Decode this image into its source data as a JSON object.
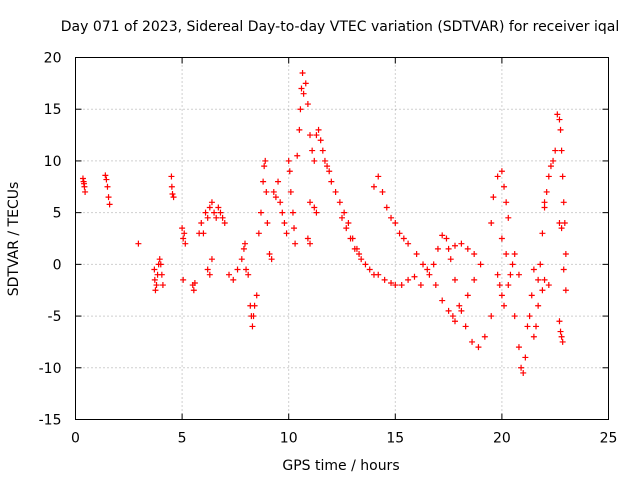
{
  "chart_data": {
    "type": "scatter",
    "title": "Day 071 of 2023, Sidereal Day-to-day VTEC variation (SDTVAR) for receiver iqal",
    "xlabel": "GPS time / hours",
    "ylabel": "SDTVAR / TECUs",
    "xlim": [
      0,
      25
    ],
    "ylim": [
      -15,
      20
    ],
    "xticks": [
      0,
      5,
      10,
      15,
      20,
      25
    ],
    "yticks": [
      -15,
      -10,
      -5,
      0,
      5,
      10,
      15,
      20
    ],
    "grid": true,
    "marker": "+",
    "marker_color": "#ff0000",
    "series": [
      {
        "name": "SDTVAR",
        "color": "#ff0000",
        "points": [
          [
            0.35,
            8.3
          ],
          [
            0.38,
            8.0
          ],
          [
            0.4,
            7.8
          ],
          [
            0.42,
            7.5
          ],
          [
            0.45,
            7.0
          ],
          [
            1.4,
            8.6
          ],
          [
            1.45,
            8.2
          ],
          [
            1.5,
            7.5
          ],
          [
            1.55,
            6.5
          ],
          [
            1.6,
            5.8
          ],
          [
            2.95,
            2.0
          ],
          [
            3.7,
            -0.5
          ],
          [
            3.72,
            -1.5
          ],
          [
            3.75,
            -2.5
          ],
          [
            3.8,
            -2.0
          ],
          [
            3.85,
            -1.0
          ],
          [
            3.9,
            0.0
          ],
          [
            3.95,
            0.5
          ],
          [
            4.0,
            0.0
          ],
          [
            4.05,
            -1.0
          ],
          [
            4.1,
            -2.0
          ],
          [
            4.5,
            8.5
          ],
          [
            4.52,
            7.5
          ],
          [
            4.55,
            6.8
          ],
          [
            4.6,
            6.5
          ],
          [
            5.0,
            3.5
          ],
          [
            5.05,
            2.5
          ],
          [
            5.1,
            3.0
          ],
          [
            5.15,
            2.0
          ],
          [
            5.05,
            -1.5
          ],
          [
            5.5,
            -2.0
          ],
          [
            5.55,
            -2.5
          ],
          [
            5.6,
            -1.8
          ],
          [
            5.8,
            3.0
          ],
          [
            5.9,
            4.0
          ],
          [
            6.0,
            3.0
          ],
          [
            6.1,
            5.0
          ],
          [
            6.2,
            4.5
          ],
          [
            6.3,
            5.5
          ],
          [
            6.4,
            6.0
          ],
          [
            6.5,
            5.0
          ],
          [
            6.6,
            4.5
          ],
          [
            6.7,
            5.5
          ],
          [
            6.8,
            5.0
          ],
          [
            6.9,
            4.5
          ],
          [
            7.0,
            4.0
          ],
          [
            6.3,
            -1.0
          ],
          [
            6.2,
            -0.5
          ],
          [
            6.4,
            0.5
          ],
          [
            7.2,
            -1.0
          ],
          [
            7.4,
            -1.5
          ],
          [
            7.6,
            -0.5
          ],
          [
            7.8,
            0.5
          ],
          [
            7.9,
            1.5
          ],
          [
            7.95,
            2.0
          ],
          [
            8.2,
            -4.0
          ],
          [
            8.25,
            -5.0
          ],
          [
            8.3,
            -6.0
          ],
          [
            8.35,
            -5.0
          ],
          [
            8.4,
            -4.0
          ],
          [
            8.5,
            -3.0
          ],
          [
            8.1,
            -1.0
          ],
          [
            8.0,
            -0.5
          ],
          [
            8.6,
            3.0
          ],
          [
            8.7,
            5.0
          ],
          [
            8.8,
            8.0
          ],
          [
            8.85,
            9.5
          ],
          [
            8.9,
            10.0
          ],
          [
            8.95,
            7.0
          ],
          [
            9.0,
            4.0
          ],
          [
            9.1,
            1.0
          ],
          [
            9.2,
            0.5
          ],
          [
            9.3,
            7.0
          ],
          [
            9.4,
            6.5
          ],
          [
            9.5,
            8.0
          ],
          [
            9.6,
            6.0
          ],
          [
            9.7,
            5.0
          ],
          [
            9.8,
            4.0
          ],
          [
            9.9,
            3.0
          ],
          [
            10.0,
            10.0
          ],
          [
            10.05,
            9.0
          ],
          [
            10.1,
            7.0
          ],
          [
            10.2,
            5.0
          ],
          [
            10.25,
            3.5
          ],
          [
            10.3,
            2.0
          ],
          [
            10.4,
            10.5
          ],
          [
            10.5,
            13.0
          ],
          [
            10.55,
            15.0
          ],
          [
            10.6,
            17.0
          ],
          [
            10.65,
            18.5
          ],
          [
            10.7,
            16.5
          ],
          [
            10.8,
            17.5
          ],
          [
            10.9,
            15.5
          ],
          [
            11.0,
            12.5
          ],
          [
            11.1,
            11.0
          ],
          [
            11.2,
            10.0
          ],
          [
            11.3,
            12.5
          ],
          [
            11.4,
            13.0
          ],
          [
            11.5,
            12.0
          ],
          [
            11.6,
            11.0
          ],
          [
            11.7,
            10.0
          ],
          [
            11.8,
            9.5
          ],
          [
            11.9,
            9.0
          ],
          [
            11.0,
            6.0
          ],
          [
            11.2,
            5.5
          ],
          [
            11.3,
            5.0
          ],
          [
            10.9,
            2.5
          ],
          [
            11.0,
            2.0
          ],
          [
            12.0,
            8.0
          ],
          [
            12.2,
            7.0
          ],
          [
            12.4,
            6.0
          ],
          [
            12.6,
            5.0
          ],
          [
            12.8,
            4.0
          ],
          [
            13.0,
            2.5
          ],
          [
            13.2,
            1.5
          ],
          [
            13.4,
            0.5
          ],
          [
            13.6,
            0.0
          ],
          [
            13.8,
            -0.5
          ],
          [
            14.0,
            -1.0
          ],
          [
            12.5,
            4.5
          ],
          [
            12.7,
            3.5
          ],
          [
            12.9,
            2.5
          ],
          [
            13.1,
            1.5
          ],
          [
            13.3,
            1.0
          ],
          [
            14.0,
            7.5
          ],
          [
            14.2,
            8.5
          ],
          [
            14.4,
            7.0
          ],
          [
            14.6,
            5.5
          ],
          [
            14.8,
            4.5
          ],
          [
            15.0,
            4.0
          ],
          [
            15.2,
            3.0
          ],
          [
            15.4,
            2.5
          ],
          [
            15.6,
            2.0
          ],
          [
            14.2,
            -1.0
          ],
          [
            14.5,
            -1.5
          ],
          [
            14.8,
            -1.8
          ],
          [
            15.0,
            -2.0
          ],
          [
            15.3,
            -2.0
          ],
          [
            15.6,
            -1.5
          ],
          [
            15.9,
            -1.2
          ],
          [
            16.2,
            -2.0
          ],
          [
            16.5,
            -0.5
          ],
          [
            16.8,
            0.0
          ],
          [
            17.0,
            1.5
          ],
          [
            17.2,
            2.8
          ],
          [
            17.4,
            2.5
          ],
          [
            17.6,
            0.5
          ],
          [
            17.8,
            -1.5
          ],
          [
            16.0,
            1.0
          ],
          [
            16.3,
            0.0
          ],
          [
            16.6,
            -1.0
          ],
          [
            16.9,
            -2.0
          ],
          [
            17.2,
            -3.5
          ],
          [
            17.5,
            -4.5
          ],
          [
            17.7,
            -5.0
          ],
          [
            17.8,
            -5.5
          ],
          [
            18.1,
            -4.5
          ],
          [
            18.4,
            -3.0
          ],
          [
            18.7,
            -1.5
          ],
          [
            19.0,
            0.0
          ],
          [
            17.5,
            1.5
          ],
          [
            17.8,
            1.8
          ],
          [
            18.1,
            2.0
          ],
          [
            18.4,
            1.5
          ],
          [
            18.7,
            1.0
          ],
          [
            18.0,
            -4.0
          ],
          [
            18.3,
            -6.0
          ],
          [
            18.6,
            -7.5
          ],
          [
            18.9,
            -8.0
          ],
          [
            19.2,
            -7.0
          ],
          [
            19.5,
            -5.0
          ],
          [
            19.5,
            4.0
          ],
          [
            19.6,
            6.5
          ],
          [
            19.8,
            8.5
          ],
          [
            20.0,
            9.0
          ],
          [
            20.1,
            7.5
          ],
          [
            20.2,
            6.0
          ],
          [
            20.3,
            4.5
          ],
          [
            19.8,
            -1.0
          ],
          [
            19.9,
            -2.0
          ],
          [
            20.0,
            -3.0
          ],
          [
            20.1,
            -4.0
          ],
          [
            20.3,
            -2.0
          ],
          [
            20.5,
            0.0
          ],
          [
            20.6,
            1.0
          ],
          [
            20.8,
            -1.0
          ],
          [
            20.0,
            2.5
          ],
          [
            20.2,
            1.0
          ],
          [
            20.4,
            -1.0
          ],
          [
            20.6,
            -5.0
          ],
          [
            20.8,
            -8.0
          ],
          [
            20.9,
            -10.0
          ],
          [
            21.0,
            -10.5
          ],
          [
            21.1,
            -9.0
          ],
          [
            21.2,
            -6.0
          ],
          [
            21.3,
            -5.0
          ],
          [
            21.4,
            -3.0
          ],
          [
            21.5,
            -7.0
          ],
          [
            21.6,
            -6.0
          ],
          [
            21.7,
            -4.0
          ],
          [
            21.8,
            0.0
          ],
          [
            21.9,
            3.0
          ],
          [
            22.0,
            5.5
          ],
          [
            22.0,
            6.0
          ],
          [
            22.1,
            7.0
          ],
          [
            22.2,
            8.5
          ],
          [
            22.3,
            9.5
          ],
          [
            22.4,
            10.0
          ],
          [
            22.5,
            11.0
          ],
          [
            21.5,
            -0.5
          ],
          [
            21.7,
            -1.5
          ],
          [
            21.9,
            -2.5
          ],
          [
            22.0,
            -1.5
          ],
          [
            22.2,
            -2.0
          ],
          [
            22.6,
            14.5
          ],
          [
            22.7,
            14.0
          ],
          [
            22.75,
            13.0
          ],
          [
            22.8,
            11.0
          ],
          [
            22.85,
            8.5
          ],
          [
            22.9,
            6.0
          ],
          [
            22.95,
            4.0
          ],
          [
            23.0,
            1.0
          ],
          [
            22.9,
            -0.5
          ],
          [
            23.0,
            -2.5
          ],
          [
            22.7,
            -5.5
          ],
          [
            22.75,
            -6.5
          ],
          [
            22.8,
            -7.0
          ],
          [
            22.85,
            -7.5
          ],
          [
            22.7,
            4.0
          ],
          [
            22.8,
            3.5
          ]
        ]
      }
    ]
  }
}
